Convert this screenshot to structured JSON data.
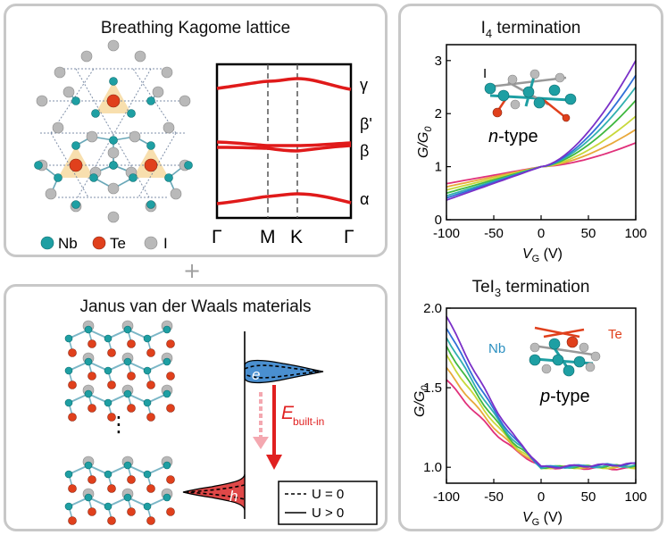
{
  "colors": {
    "nb": "#1e9fa3",
    "te": "#e0401c",
    "iodine": "#b9b9b9",
    "band": "#e01a1a",
    "panel_border": "#c8c8c8",
    "electron": "#4a8fd0",
    "hole": "#e04848",
    "arrow_up": "#f4a8b0",
    "arrow_down": "#e02020"
  },
  "kagome": {
    "title": "Breathing Kagome lattice",
    "legend": [
      {
        "label": "Nb",
        "color": "#1e9fa3"
      },
      {
        "label": "Te",
        "color": "#e0401c"
      },
      {
        "label": "I",
        "color": "#b9b9b9"
      }
    ],
    "band_labels": [
      "γ",
      "β'",
      "β",
      "α"
    ],
    "kpoints": [
      "Γ",
      "M",
      "K",
      "Γ"
    ]
  },
  "plus": "+",
  "janus": {
    "title": "Janus van der Waals materials",
    "ellipsis": "⋮",
    "electron_label": "e",
    "hole_label": "h",
    "field_label": "E",
    "field_sub": "built-in",
    "legend": [
      "U = 0",
      "U > 0"
    ]
  },
  "transport": {
    "top": {
      "title_main": "I",
      "title_sub": "4",
      "title_rest": " termination",
      "inset_label": "I",
      "type_italic": "n",
      "type_rest": "-type",
      "ylabel_main": "G/G",
      "ylabel_sub": "0",
      "xlabel_main": "V",
      "xlabel_sub": "G",
      "xlabel_unit": " (V)",
      "xticks": [
        "-100",
        "-50",
        "0",
        "50",
        "100"
      ],
      "yticks": [
        "0",
        "1",
        "2",
        "3"
      ]
    },
    "bottom": {
      "title_main": "TeI",
      "title_sub": "3",
      "title_rest": " termination",
      "inset_label_nb": "Nb",
      "inset_label_te": "Te",
      "type_italic": "p",
      "type_rest": "-type",
      "ylabel_main": "G/G",
      "ylabel_sub": "0",
      "xlabel_main": "V",
      "xlabel_sub": "G",
      "xlabel_unit": " (V)",
      "xticks": [
        "-100",
        "-50",
        "0",
        "50",
        "100"
      ],
      "yticks": [
        "1.0",
        "1.5",
        "2.0"
      ]
    },
    "series_colors": [
      "#e0307a",
      "#e8a83a",
      "#c8d83a",
      "#40b840",
      "#30b0b0",
      "#3070d8",
      "#7a30c8"
    ]
  },
  "chart_data": [
    {
      "type": "line",
      "xlabel": "V_G (V)",
      "ylabel": "G/G_0",
      "xlim": [
        -100,
        100
      ],
      "ylim": [
        0,
        3.3
      ],
      "series": [
        {
          "x": [
            -100,
            0,
            100
          ],
          "values": [
            0.68,
            1.0,
            1.45
          ]
        },
        {
          "x": [
            -100,
            0,
            100
          ],
          "values": [
            0.62,
            1.0,
            1.7
          ]
        },
        {
          "x": [
            -100,
            0,
            100
          ],
          "values": [
            0.56,
            1.0,
            1.95
          ]
        },
        {
          "x": [
            -100,
            0,
            100
          ],
          "values": [
            0.5,
            1.0,
            2.25
          ]
        },
        {
          "x": [
            -100,
            0,
            100
          ],
          "values": [
            0.45,
            1.0,
            2.5
          ]
        },
        {
          "x": [
            -100,
            0,
            100
          ],
          "values": [
            0.41,
            1.0,
            2.72
          ]
        },
        {
          "x": [
            -100,
            0,
            100
          ],
          "values": [
            0.37,
            1.0,
            3.0
          ]
        }
      ]
    },
    {
      "type": "line",
      "xlabel": "V_G (V)",
      "ylabel": "G/G_0",
      "xlim": [
        -100,
        100
      ],
      "ylim": [
        0.9,
        2.0
      ],
      "series": [
        {
          "x": [
            -100,
            -20,
            0,
            100
          ],
          "values": [
            1.55,
            1.08,
            1.0,
            0.99
          ]
        },
        {
          "x": [
            -100,
            -20,
            0,
            100
          ],
          "values": [
            1.62,
            1.09,
            1.0,
            1.0
          ]
        },
        {
          "x": [
            -100,
            -20,
            0,
            100
          ],
          "values": [
            1.7,
            1.1,
            1.0,
            1.0
          ]
        },
        {
          "x": [
            -100,
            -20,
            0,
            100
          ],
          "values": [
            1.76,
            1.11,
            1.0,
            1.01
          ]
        },
        {
          "x": [
            -100,
            -20,
            0,
            100
          ],
          "values": [
            1.82,
            1.12,
            1.0,
            1.01
          ]
        },
        {
          "x": [
            -100,
            -20,
            0,
            100
          ],
          "values": [
            1.88,
            1.13,
            1.0,
            1.02
          ]
        },
        {
          "x": [
            -100,
            -20,
            0,
            100
          ],
          "values": [
            1.95,
            1.14,
            1.0,
            1.02
          ]
        }
      ]
    }
  ]
}
